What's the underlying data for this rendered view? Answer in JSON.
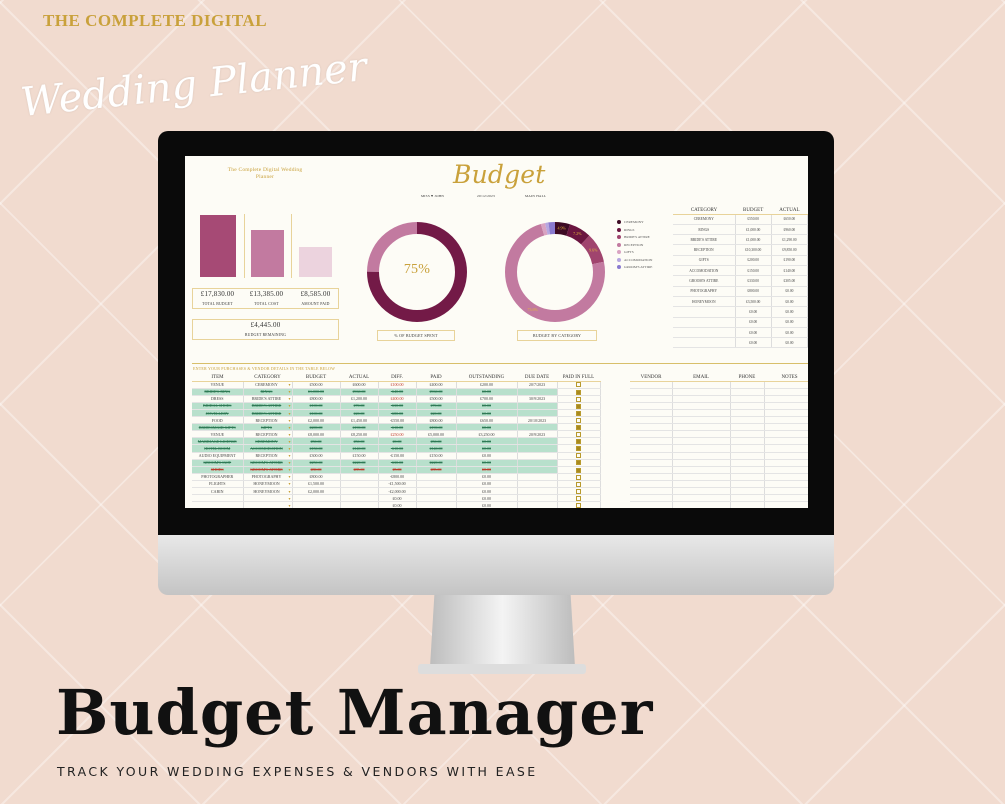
{
  "promo": {
    "brand_line": "THE COMPLETE DIGITAL",
    "brand_script": "Wedding Planner",
    "headline": "Budget Manager",
    "subheadline": "TRACK YOUR WEDDING EXPENSES & VENDORS WITH EASE"
  },
  "sheet": {
    "logo": "The Complete Digital Wedding Planner",
    "title": "Budget",
    "info": {
      "couple": "MISS ♥ JOHN",
      "date": "20/12/2023",
      "venue": "MAIN HALL"
    },
    "summary": {
      "total_budget": 17830,
      "total_cost": 13385,
      "amount_paid": 8585,
      "total_budget_label": "£17,830.00",
      "total_budget_caption": "TOTAL BUDGET",
      "total_cost_label": "£13,385.00",
      "total_cost_caption": "TOTAL COST",
      "amount_paid_label": "£8,585.00",
      "amount_paid_caption": "AMOUNT PAID",
      "remaining_label": "£4,445.00",
      "remaining_caption": "BUDGET REMAINING"
    },
    "colors": {
      "bar_budget": "#a64a75",
      "bar_cost": "#c27aa0",
      "bar_paid": "#ecd3de",
      "spent": "#731a47",
      "unspent": "#c27aa0",
      "gold": "#c9a13b"
    },
    "spent_chart": {
      "percent": 75,
      "label": "75%",
      "caption": "% OF BUDGET SPENT"
    },
    "category_chart": {
      "caption": "BUDGET BY CATEGORY",
      "slices": [
        {
          "name": "CEREMONY",
          "value": 650,
          "label": "4.9%",
          "color": "#3d0a24"
        },
        {
          "name": "RINGS",
          "value": 960,
          "label": "7.2%",
          "color": "#6b1540"
        },
        {
          "name": "BRIDE'S ATTIRE",
          "value": 1290,
          "label": "9.6%",
          "color": "#a0446e"
        },
        {
          "name": "RECEPTION",
          "value": 9850,
          "label": "73.6%",
          "color": "#c27aa0"
        },
        {
          "name": "GIFTS",
          "value": 190,
          "label": "",
          "color": "#d9a3c2"
        },
        {
          "name": "ACCOMODATION",
          "value": 140,
          "label": "",
          "color": "#b7a7e0"
        },
        {
          "name": "GROOM'S ATTIRE",
          "value": 305,
          "label": "",
          "color": "#8a7ad0"
        }
      ]
    },
    "category_table": {
      "headers": [
        "CATEGORY",
        "BUDGET",
        "ACTUAL"
      ],
      "rows": [
        [
          "CEREMONY",
          "£550.00",
          "£650.00"
        ],
        [
          "RINGS",
          "£1,000.00",
          "£960.00"
        ],
        [
          "BRIDE'S ATTIRE",
          "£1,000.00",
          "£1,290.00"
        ],
        [
          "RECEPTION",
          "£10,300.00",
          "£9,850.00"
        ],
        [
          "GIFTS",
          "£200.00",
          "£190.00"
        ],
        [
          "ACCOMODATION",
          "£150.00",
          "£140.00"
        ],
        [
          "GROOM'S ATTIRE",
          "£330.00",
          "£305.00"
        ],
        [
          "PHOTOGRAPHY",
          "£800.00",
          "£0.00"
        ],
        [
          "HONEYMOON",
          "£3,500.00",
          "£0.00"
        ],
        [
          "",
          "£0.00",
          "£0.00"
        ],
        [
          "",
          "£0.00",
          "£0.00"
        ],
        [
          "",
          "£0.00",
          "£0.00"
        ],
        [
          "",
          "£0.00",
          "£0.00"
        ]
      ]
    },
    "purchases": {
      "instruction": "ENTER YOUR PURCHASES & VENDOR DETAILS IN THE TABLE BELOW",
      "headers": [
        "ITEM",
        "CATEGORY",
        "BUDGET",
        "ACTUAL",
        "DIFF.",
        "PAID",
        "OUTSTANDING",
        "DUE DATE",
        "PAID IN FULL"
      ],
      "rows": [
        {
          "c": [
            "VENUE",
            "CEREMONY",
            "£500.00",
            "£600.00",
            "£100.00",
            "£400.00",
            "£200.00",
            "20/7/2023"
          ],
          "paid": false,
          "diff_over": true
        },
        {
          "c": [
            "BRIDE'S RING",
            "RINGS",
            "£1,000.00",
            "£960.00",
            "-£40.00",
            "£960.00",
            "£0.00",
            ""
          ],
          "paid": true
        },
        {
          "c": [
            "DRESS",
            "BRIDE'S ATTIRE",
            "£800.00",
            "£1,200.00",
            "£400.00",
            "£500.00",
            "£700.00",
            "30/9/2023"
          ],
          "paid": false,
          "diff_over": true
        },
        {
          "c": [
            "BRIDAL SHOES",
            "BRIDE'S ATTIRE",
            "£100.00",
            "£70.00",
            "-£30.00",
            "£70.00",
            "£0.00",
            ""
          ],
          "paid": true
        },
        {
          "c": [
            "JEWELLERY",
            "BRIDE'S ATTIRE",
            "£100.00",
            "£20.00",
            "-£80.00",
            "£20.00",
            "£0.00",
            ""
          ],
          "paid": true
        },
        {
          "c": [
            "FOOD",
            "RECEPTION",
            "£2,000.00",
            "£1,450.00",
            "-£550.00",
            "£800.00",
            "£650.00",
            "20/10/2023"
          ],
          "paid": false
        },
        {
          "c": [
            "BRIDESMAID GIFTS",
            "GIFTS",
            "£200.00",
            "£190.00",
            "-£10.00",
            "£190.00",
            "£0.00",
            ""
          ],
          "paid": true
        },
        {
          "c": [
            "VENUE",
            "RECEPTION",
            "£8,000.00",
            "£8,250.00",
            "£250.00",
            "£5,000.00",
            "£3,250.00",
            "20/9/2023"
          ],
          "paid": false,
          "diff_over": true
        },
        {
          "c": [
            "MARRIAGE LICENSE",
            "CEREMONY",
            "£50.00",
            "£50.00",
            "£0.00",
            "£50.00",
            "£0.00",
            ""
          ],
          "paid": true
        },
        {
          "c": [
            "HOTEL ROOM",
            "ACCOMODATION",
            "£150.00",
            "£140.00",
            "-£10.00",
            "£140.00",
            "£0.00",
            ""
          ],
          "paid": true
        },
        {
          "c": [
            "AUDIO EQUIPMENT",
            "RECEPTION",
            "£300.00",
            "£150.00",
            "-£150.00",
            "£150.00",
            "£0.00",
            ""
          ],
          "paid": false
        },
        {
          "c": [
            "GROOM'S SUIT",
            "GROOM'S ATTIRE",
            "£250.00",
            "£220.00",
            "-£30.00",
            "£220.00",
            "£0.00",
            ""
          ],
          "paid": true
        },
        {
          "c": [
            "SHOES",
            "GROOM'S ATTIRE",
            "£80.00",
            "£85.00",
            "£5.00",
            "£85.00",
            "£0.00",
            ""
          ],
          "paid": true,
          "diff_over": true
        },
        {
          "c": [
            "PHOTOGRAPHER",
            "PHOTOGRAPHY",
            "£800.00",
            "",
            "-£800.00",
            "",
            "£0.00",
            ""
          ],
          "paid": false
        },
        {
          "c": [
            "FLIGHTS",
            "HONEYMOON",
            "£1,500.00",
            "",
            "-£1,500.00",
            "",
            "£0.00",
            ""
          ],
          "paid": false
        },
        {
          "c": [
            "CABIN",
            "HONEYMOON",
            "£2,000.00",
            "",
            "-£2,000.00",
            "",
            "£0.00",
            ""
          ],
          "paid": false
        },
        {
          "c": [
            "",
            "",
            "",
            "",
            "£0.00",
            "",
            "£0.00",
            ""
          ],
          "paid": false
        },
        {
          "c": [
            "",
            "",
            "",
            "",
            "£0.00",
            "",
            "£0.00",
            ""
          ],
          "paid": false
        }
      ]
    },
    "vendors": {
      "headers": [
        "VENDOR",
        "EMAIL",
        "PHONE",
        "NOTES"
      ]
    }
  }
}
